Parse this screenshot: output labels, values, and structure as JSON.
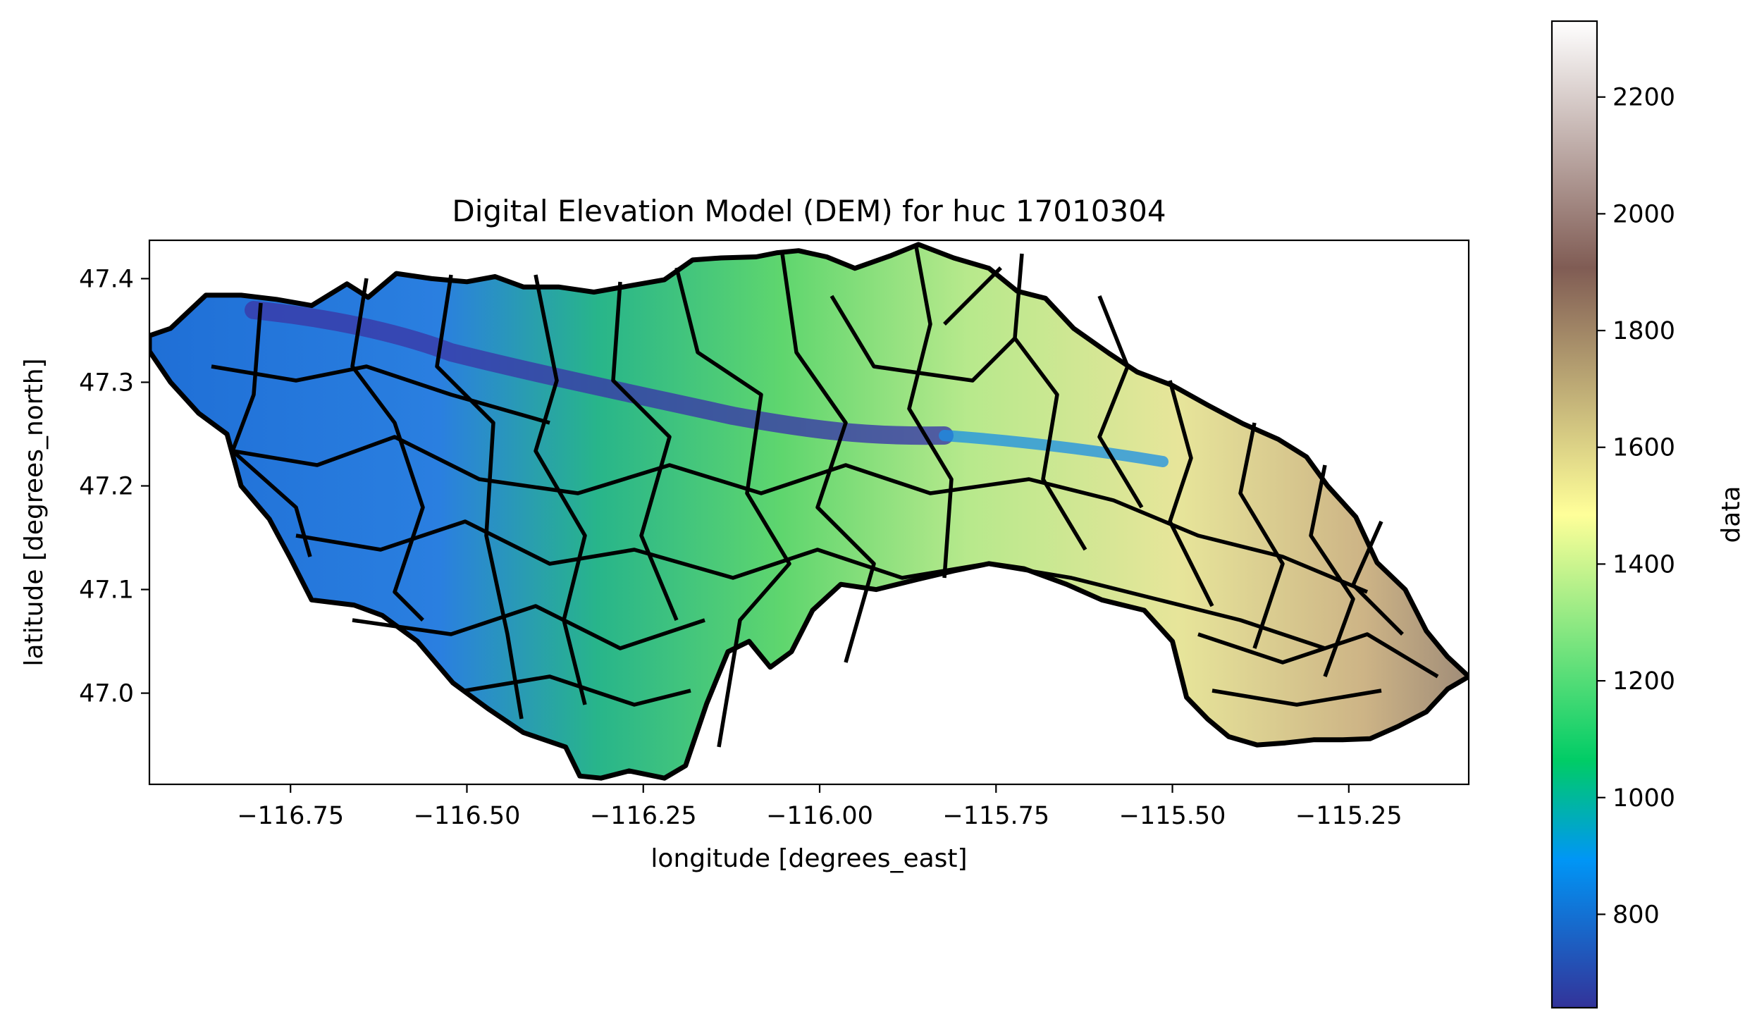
{
  "title": "Digital Elevation Model (DEM) for huc 17010304",
  "map": {
    "xlabel": "longitude [degrees_east]",
    "ylabel": "latitude [degrees_north]",
    "xlim": [
      -116.95,
      -115.08
    ],
    "ylim": [
      46.912,
      47.437
    ],
    "xticks": [
      {
        "value": -116.75,
        "label": "−116.75"
      },
      {
        "value": -116.5,
        "label": "−116.50"
      },
      {
        "value": -116.25,
        "label": "−116.25"
      },
      {
        "value": -116.0,
        "label": "−116.00"
      },
      {
        "value": -115.75,
        "label": "−115.75"
      },
      {
        "value": -115.5,
        "label": "−115.50"
      },
      {
        "value": -115.25,
        "label": "−115.25"
      }
    ],
    "yticks": [
      {
        "value": 47.0,
        "label": "47.0"
      },
      {
        "value": 47.1,
        "label": "47.1"
      },
      {
        "value": 47.2,
        "label": "47.2"
      },
      {
        "value": 47.3,
        "label": "47.3"
      },
      {
        "value": 47.4,
        "label": "47.4"
      }
    ],
    "boundary_outline": [
      [
        -116.95,
        47.345
      ],
      [
        -116.92,
        47.352
      ],
      [
        -116.87,
        47.384
      ],
      [
        -116.82,
        47.384
      ],
      [
        -116.77,
        47.38
      ],
      [
        -116.72,
        47.374
      ],
      [
        -116.67,
        47.395
      ],
      [
        -116.64,
        47.382
      ],
      [
        -116.6,
        47.405
      ],
      [
        -116.55,
        47.4
      ],
      [
        -116.5,
        47.397
      ],
      [
        -116.46,
        47.402
      ],
      [
        -116.42,
        47.392
      ],
      [
        -116.37,
        47.392
      ],
      [
        -116.32,
        47.387
      ],
      [
        -116.27,
        47.393
      ],
      [
        -116.22,
        47.399
      ],
      [
        -116.18,
        47.418
      ],
      [
        -116.14,
        47.42
      ],
      [
        -116.09,
        47.421
      ],
      [
        -116.06,
        47.425
      ],
      [
        -116.03,
        47.427
      ],
      [
        -115.99,
        47.421
      ],
      [
        -115.95,
        47.41
      ],
      [
        -115.9,
        47.422
      ],
      [
        -115.86,
        47.433
      ],
      [
        -115.81,
        47.42
      ],
      [
        -115.76,
        47.41
      ],
      [
        -115.72,
        47.388
      ],
      [
        -115.68,
        47.381
      ],
      [
        -115.64,
        47.352
      ],
      [
        -115.59,
        47.328
      ],
      [
        -115.55,
        47.31
      ],
      [
        -115.5,
        47.297
      ],
      [
        -115.45,
        47.278
      ],
      [
        -115.4,
        47.26
      ],
      [
        -115.35,
        47.245
      ],
      [
        -115.31,
        47.228
      ],
      [
        -115.28,
        47.2
      ],
      [
        -115.24,
        47.17
      ],
      [
        -115.21,
        47.126
      ],
      [
        -115.17,
        47.1
      ],
      [
        -115.14,
        47.06
      ],
      [
        -115.11,
        47.035
      ],
      [
        -115.08,
        47.016
      ],
      [
        -115.11,
        47.004
      ],
      [
        -115.14,
        46.982
      ],
      [
        -115.18,
        46.968
      ],
      [
        -115.22,
        46.956
      ],
      [
        -115.26,
        46.955
      ],
      [
        -115.3,
        46.955
      ],
      [
        -115.34,
        46.952
      ],
      [
        -115.38,
        46.95
      ],
      [
        -115.42,
        46.958
      ],
      [
        -115.45,
        46.975
      ],
      [
        -115.48,
        46.996
      ],
      [
        -115.5,
        47.05
      ],
      [
        -115.54,
        47.08
      ],
      [
        -115.6,
        47.09
      ],
      [
        -115.65,
        47.105
      ],
      [
        -115.71,
        47.12
      ],
      [
        -115.76,
        47.125
      ],
      [
        -115.81,
        47.118
      ],
      [
        -115.86,
        47.11
      ],
      [
        -115.92,
        47.1
      ],
      [
        -115.97,
        47.105
      ],
      [
        -116.01,
        47.08
      ],
      [
        -116.04,
        47.04
      ],
      [
        -116.07,
        47.025
      ],
      [
        -116.1,
        47.05
      ],
      [
        -116.13,
        47.04
      ],
      [
        -116.16,
        46.99
      ],
      [
        -116.19,
        46.93
      ],
      [
        -116.22,
        46.918
      ],
      [
        -116.27,
        46.925
      ],
      [
        -116.31,
        46.918
      ],
      [
        -116.34,
        46.92
      ],
      [
        -116.36,
        46.948
      ],
      [
        -116.42,
        46.962
      ],
      [
        -116.47,
        46.985
      ],
      [
        -116.52,
        47.01
      ],
      [
        -116.57,
        47.05
      ],
      [
        -116.62,
        47.075
      ],
      [
        -116.66,
        47.085
      ],
      [
        -116.72,
        47.09
      ],
      [
        -116.75,
        47.13
      ],
      [
        -116.78,
        47.168
      ],
      [
        -116.82,
        47.2
      ],
      [
        -116.84,
        47.25
      ],
      [
        -116.88,
        47.27
      ],
      [
        -116.92,
        47.3
      ],
      [
        -116.95,
        47.33
      ]
    ],
    "colors": {
      "boundary": "#000000",
      "low": "#333399",
      "mid_low": "#0096f6",
      "mid": "#00cc66",
      "mid_high": "#ffff99",
      "high": "#805c54",
      "top": "#ffffff"
    }
  },
  "colorbar": {
    "label": "data",
    "range": [
      640,
      2330
    ],
    "colormap": "terrain",
    "ticks": [
      {
        "value": 800,
        "label": "800"
      },
      {
        "value": 1000,
        "label": "1000"
      },
      {
        "value": 1200,
        "label": "1200"
      },
      {
        "value": 1400,
        "label": "1400"
      },
      {
        "value": 1600,
        "label": "1600"
      },
      {
        "value": 1800,
        "label": "1800"
      },
      {
        "value": 2000,
        "label": "2000"
      },
      {
        "value": 2200,
        "label": "2200"
      }
    ]
  }
}
